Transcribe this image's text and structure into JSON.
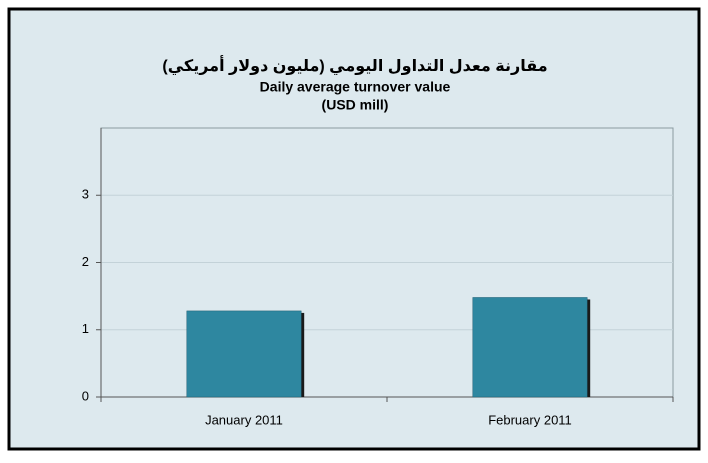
{
  "chart_data": {
    "type": "bar",
    "title": "مقارنة معدل التداول اليومي  (مليون دولار أمريكي)",
    "subtitle": "Daily average turnover value",
    "unit_label": "(USD mill)",
    "categories": [
      "January 2011",
      "February 2011"
    ],
    "values": [
      1.28,
      1.48
    ],
    "color": "#2e87a0",
    "ylim": [
      0,
      4
    ],
    "yticks": [
      0,
      1,
      2,
      3
    ],
    "grid": true
  }
}
